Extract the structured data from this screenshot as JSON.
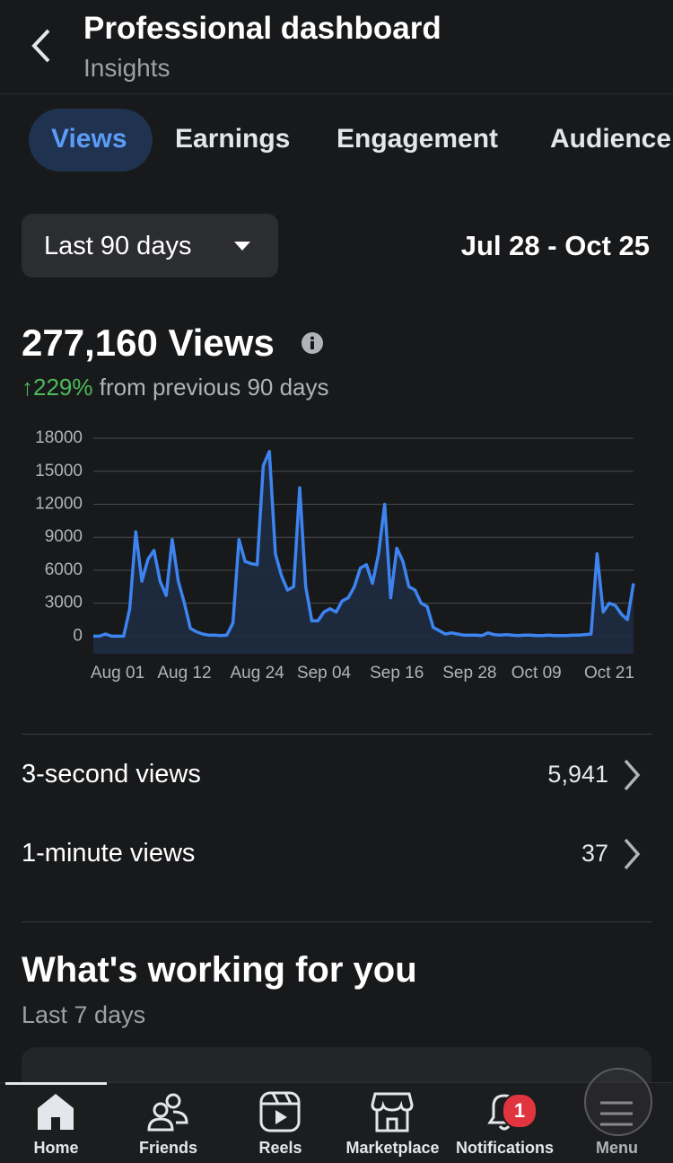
{
  "header": {
    "title": "Professional dashboard",
    "subtitle": "Insights"
  },
  "tabs": [
    "Views",
    "Earnings",
    "Engagement",
    "Audience"
  ],
  "filter": {
    "range": "Last 90 days",
    "dates": "Jul 28 - Oct 25"
  },
  "summary": {
    "total": "277,160 Views",
    "change": "↑229%",
    "change_note": "from previous 90 days"
  },
  "chart_data": {
    "type": "line",
    "color": "#3d84f0",
    "area_color": "#1e2b40",
    "grid": true,
    "categories": [
      null,
      null,
      null,
      null,
      "Aug 01",
      null,
      null,
      null,
      null,
      null,
      null,
      null,
      null,
      null,
      null,
      "Aug 12",
      null,
      null,
      null,
      null,
      null,
      null,
      null,
      null,
      null,
      null,
      null,
      "Aug 24",
      null,
      null,
      null,
      null,
      null,
      null,
      null,
      null,
      null,
      null,
      "Sep 04",
      null,
      null,
      null,
      null,
      null,
      null,
      null,
      null,
      null,
      null,
      null,
      "Sep 16",
      null,
      null,
      null,
      null,
      null,
      null,
      null,
      null,
      null,
      null,
      null,
      "Sep 28",
      null,
      null,
      null,
      null,
      null,
      null,
      null,
      null,
      null,
      null,
      "Oct 09",
      null,
      null,
      null,
      null,
      null,
      null,
      null,
      null,
      null,
      null,
      null,
      "Oct 21",
      null,
      null,
      null,
      null
    ],
    "values": [
      0,
      0,
      200,
      0,
      0,
      0,
      2500,
      9500,
      5000,
      7000,
      7800,
      5000,
      3700,
      8800,
      5000,
      3000,
      700,
      400,
      200,
      100,
      100,
      50,
      100,
      1200,
      8800,
      6800,
      6600,
      6500,
      15500,
      16800,
      7500,
      5500,
      4200,
      4500,
      13500,
      4500,
      1400,
      1400,
      2200,
      2500,
      2200,
      3200,
      3500,
      4500,
      6200,
      6500,
      4800,
      7500,
      12000,
      3500,
      8000,
      6800,
      4500,
      4200,
      3000,
      2700,
      800,
      500,
      200,
      300,
      200,
      100,
      100,
      100,
      50,
      300,
      150,
      100,
      150,
      100,
      50,
      100,
      100,
      50,
      50,
      100,
      50,
      50,
      50,
      100,
      100,
      150,
      200,
      7500,
      2200,
      3000,
      2800,
      2000,
      1500,
      4800
    ],
    "ylim": [
      -1600,
      18000
    ],
    "yticks": [
      0,
      3000,
      6000,
      9000,
      12000,
      15000,
      18000
    ]
  },
  "metrics": [
    {
      "label": "3-second views",
      "value": "5,941"
    },
    {
      "label": "1-minute views",
      "value": "37"
    }
  ],
  "section": {
    "title": "What's working for you",
    "subtitle": "Last 7 days"
  },
  "nav": [
    {
      "label": "Home"
    },
    {
      "label": "Friends"
    },
    {
      "label": "Reels"
    },
    {
      "label": "Marketplace"
    },
    {
      "label": "Notifications",
      "badge": "1"
    },
    {
      "label": "Menu"
    }
  ]
}
